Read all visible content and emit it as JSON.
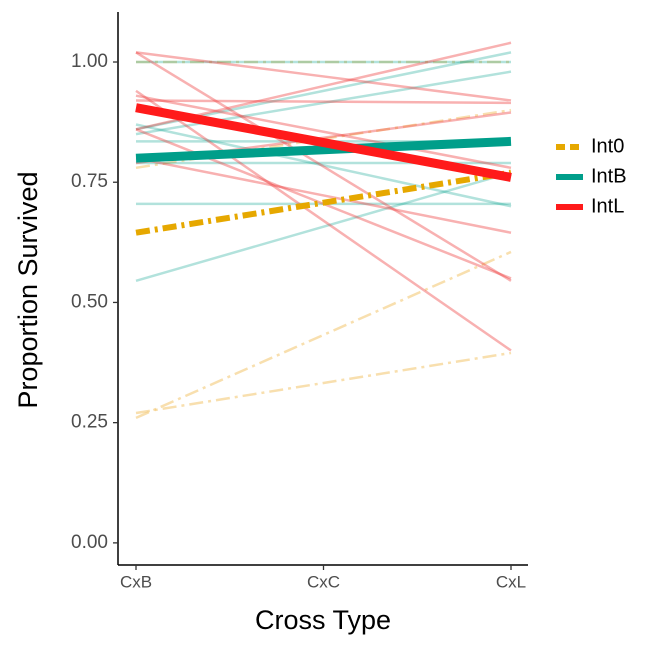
{
  "chart_data": {
    "type": "line",
    "x_label": "Cross Type",
    "y_label": "Proportion Survived",
    "categories": [
      "CxB",
      "CxC",
      "CxL"
    ],
    "ylim": [
      -0.046,
      1.104
    ],
    "yticks": [
      {
        "value": 0,
        "label": "0.00"
      },
      {
        "value": 0.25,
        "label": "0.25"
      },
      {
        "value": 0.5,
        "label": "0.50"
      },
      {
        "value": 0.75,
        "label": "0.75"
      },
      {
        "value": 1,
        "label": "1.00"
      }
    ],
    "legend": "right",
    "series": [
      {
        "name": "Int0",
        "color": "#f2c46b",
        "linewidth": 2.5,
        "opacity": 0.55,
        "dash": "dashdot",
        "values": [
          0.27,
          0.3325,
          0.395
        ]
      },
      {
        "name": "Int0",
        "color": "#f2c46b",
        "linewidth": 2.5,
        "opacity": 0.55,
        "dash": "dashdot",
        "values": [
          0.26,
          0.4325,
          0.605
        ]
      },
      {
        "name": "Int0",
        "color": "#f2c46b",
        "linewidth": 2.5,
        "opacity": 0.55,
        "dash": "dashdot",
        "values": [
          0.78,
          0.84,
          0.9
        ]
      },
      {
        "name": "Int0",
        "color": "#f2c46b",
        "linewidth": 2.5,
        "opacity": 0.55,
        "dash": "dashdot",
        "values": [
          1,
          1,
          1
        ]
      },
      {
        "name": "IntB",
        "color": "#009e8a",
        "linewidth": 2.5,
        "opacity": 0.3,
        "dash": "solid",
        "values": [
          0.545,
          0.6575,
          0.77
        ]
      },
      {
        "name": "IntB",
        "color": "#009e8a",
        "linewidth": 2.5,
        "opacity": 0.3,
        "dash": "solid",
        "values": [
          0.86,
          0.94,
          1.02
        ]
      },
      {
        "name": "IntB",
        "color": "#009e8a",
        "linewidth": 2.5,
        "opacity": 0.3,
        "dash": "solid",
        "values": [
          0.85,
          0.915,
          0.98
        ]
      },
      {
        "name": "IntB",
        "color": "#009e8a",
        "linewidth": 2.5,
        "opacity": 0.3,
        "dash": "solid",
        "values": [
          0.835,
          0.835,
          0.835
        ]
      },
      {
        "name": "IntB",
        "color": "#009e8a",
        "linewidth": 2.5,
        "opacity": 0.3,
        "dash": "solid",
        "values": [
          0.79,
          0.79,
          0.79
        ]
      },
      {
        "name": "IntB",
        "color": "#009e8a",
        "linewidth": 2.5,
        "opacity": 0.3,
        "dash": "solid",
        "values": [
          0.705,
          0.705,
          0.705
        ]
      },
      {
        "name": "IntB",
        "color": "#009e8a",
        "linewidth": 2.5,
        "opacity": 0.3,
        "dash": "solid",
        "values": [
          1,
          1,
          1
        ]
      },
      {
        "name": "IntB",
        "color": "#009e8a",
        "linewidth": 2.5,
        "opacity": 0.3,
        "dash": "solid",
        "values": [
          0.87,
          0.785,
          0.7
        ]
      },
      {
        "name": "IntL",
        "color": "#ee3b3b",
        "linewidth": 2.5,
        "opacity": 0.4,
        "dash": "solid",
        "values": [
          1.02,
          0.7825,
          0.545
        ]
      },
      {
        "name": "IntL",
        "color": "#ee3b3b",
        "linewidth": 2.5,
        "opacity": 0.4,
        "dash": "solid",
        "values": [
          1.02,
          0.97,
          0.92
        ]
      },
      {
        "name": "IntL",
        "color": "#ee3b3b",
        "linewidth": 2.5,
        "opacity": 0.4,
        "dash": "solid",
        "values": [
          0.94,
          0.67,
          0.4
        ]
      },
      {
        "name": "IntL",
        "color": "#ee3b3b",
        "linewidth": 2.5,
        "opacity": 0.4,
        "dash": "solid",
        "values": [
          0.92,
          0.9175,
          0.915
        ]
      },
      {
        "name": "IntL",
        "color": "#ee3b3b",
        "linewidth": 2.5,
        "opacity": 0.4,
        "dash": "solid",
        "values": [
          0.86,
          0.95,
          1.04
        ]
      },
      {
        "name": "IntL",
        "color": "#ee3b3b",
        "linewidth": 2.5,
        "opacity": 0.4,
        "dash": "solid",
        "values": [
          0.86,
          0.705,
          0.55
        ]
      },
      {
        "name": "IntL",
        "color": "#ee3b3b",
        "linewidth": 2.5,
        "opacity": 0.4,
        "dash": "solid",
        "values": [
          0.8,
          0.7225,
          0.645
        ]
      },
      {
        "name": "IntL",
        "color": "#ee3b3b",
        "linewidth": 2.5,
        "opacity": 0.4,
        "dash": "solid",
        "values": [
          0.79,
          0.8425,
          0.895
        ]
      },
      {
        "name": "IntL",
        "color": "#ee3b3b",
        "linewidth": 2.5,
        "opacity": 0.4,
        "dash": "solid",
        "values": [
          0.93,
          0.855,
          0.78
        ]
      },
      {
        "name": "Int0",
        "color": "#e6a800",
        "linewidth": 6,
        "opacity": 1,
        "dash": "dashdot",
        "legend": true,
        "values": [
          0.645,
          0.7075,
          0.77
        ]
      },
      {
        "name": "IntB",
        "color": "#009e8a",
        "linewidth": 9,
        "opacity": 1,
        "dash": "solid",
        "legend": true,
        "values": [
          0.8,
          0.8175,
          0.835
        ]
      },
      {
        "name": "IntL",
        "color": "#ff1a1a",
        "linewidth": 9,
        "opacity": 1,
        "dash": "solid",
        "legend": true,
        "values": [
          0.905,
          0.8325,
          0.76
        ]
      }
    ]
  }
}
